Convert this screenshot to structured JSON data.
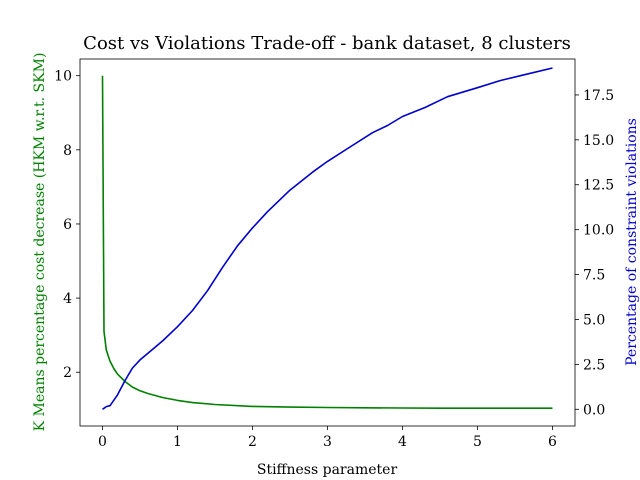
{
  "chart_data": {
    "type": "line",
    "title": "Cost vs Violations Trade-off - bank dataset, 8 clusters",
    "xlabel": "Stiffness parameter",
    "ylabel_left": "K Means percentage cost decrease (HKM w.r.t. SKM)",
    "ylabel_right": "Percentage of constraint violations",
    "xlim": [
      -0.3,
      6.3
    ],
    "ylim_left": [
      0.55,
      10.45
    ],
    "ylim_right": [
      -0.93,
      19.5
    ],
    "xticks": [
      0,
      1,
      2,
      3,
      4,
      5,
      6
    ],
    "xtick_labels": [
      "0",
      "1",
      "2",
      "3",
      "4",
      "5",
      "6"
    ],
    "yticks_left": [
      2,
      4,
      6,
      8,
      10
    ],
    "ytick_labels_left": [
      "2",
      "4",
      "6",
      "8",
      "10"
    ],
    "yticks_right": [
      0,
      2.5,
      5,
      7.5,
      10,
      12.5,
      15,
      17.5
    ],
    "ytick_labels_right": [
      "0.0",
      "2.5",
      "5.0",
      "7.5",
      "10.0",
      "12.5",
      "15.0",
      "17.5"
    ],
    "grid": false,
    "series": [
      {
        "axis": "left",
        "color": "#008000",
        "x": [
          0,
          0.02,
          0.05,
          0.1,
          0.15,
          0.2,
          0.3,
          0.4,
          0.5,
          0.6,
          0.8,
          1.0,
          1.2,
          1.5,
          2.0,
          2.5,
          3.0,
          3.5,
          4.0,
          4.5,
          5.0,
          5.5,
          6.0
        ],
        "values": [
          10.0,
          3.1,
          2.6,
          2.3,
          2.1,
          1.95,
          1.75,
          1.6,
          1.5,
          1.43,
          1.32,
          1.24,
          1.18,
          1.13,
          1.08,
          1.06,
          1.05,
          1.04,
          1.035,
          1.03,
          1.03,
          1.03,
          1.03
        ]
      },
      {
        "axis": "right",
        "color": "#0000cc",
        "x": [
          0,
          0.05,
          0.1,
          0.2,
          0.3,
          0.4,
          0.5,
          0.6,
          0.8,
          1.0,
          1.2,
          1.4,
          1.6,
          1.8,
          2.0,
          2.2,
          2.5,
          2.8,
          3.0,
          3.3,
          3.6,
          3.8,
          4.0,
          4.3,
          4.6,
          5.0,
          5.3,
          5.6,
          6.0
        ],
        "values": [
          0,
          0.15,
          0.2,
          0.8,
          1.6,
          2.3,
          2.75,
          3.1,
          3.8,
          4.6,
          5.5,
          6.6,
          7.9,
          9.1,
          10.1,
          11.0,
          12.2,
          13.2,
          13.8,
          14.6,
          15.4,
          15.8,
          16.3,
          16.8,
          17.4,
          17.9,
          18.3,
          18.6,
          19.0
        ]
      }
    ]
  }
}
